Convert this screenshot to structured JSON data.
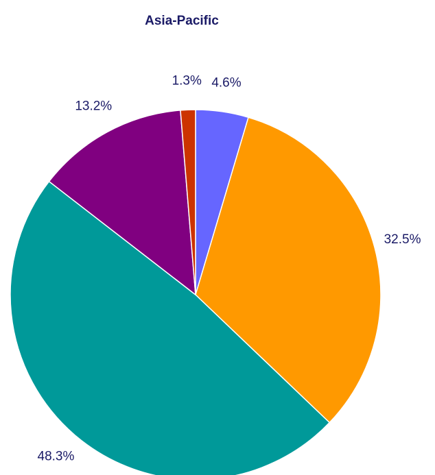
{
  "chart_data": {
    "type": "pie",
    "title": "Asia-Pacific",
    "values": [
      4.6,
      32.5,
      48.3,
      13.2,
      1.3
    ],
    "value_labels": [
      "4.6%",
      "32.5%",
      "48.3%",
      "13.2%",
      "1.3%"
    ],
    "colors": [
      "#6666ff",
      "#ff9900",
      "#009999",
      "#800080",
      "#cc3300"
    ]
  }
}
